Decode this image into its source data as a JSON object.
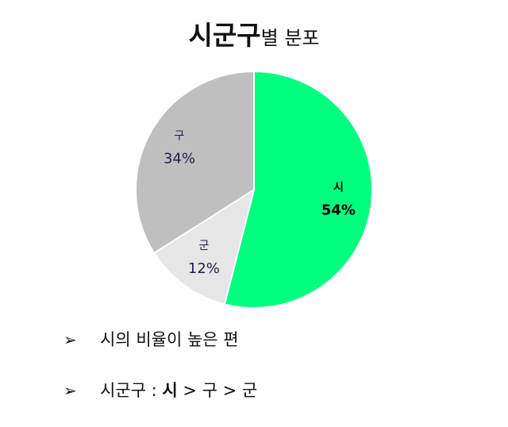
{
  "title": {
    "main": "시군구",
    "sub": "별 분포"
  },
  "chart_data": {
    "type": "pie",
    "slices": [
      {
        "label": "시",
        "value": 54,
        "value_label": "54%",
        "color": "#00FF80",
        "label_color": "#000000",
        "bold": true
      },
      {
        "label": "군",
        "value": 12,
        "value_label": "12%",
        "color": "#E6E6E6",
        "label_color": "#1F1F4D",
        "bold": false
      },
      {
        "label": "구",
        "value": 34,
        "value_label": "34%",
        "color": "#BFBFBF",
        "label_color": "#1F1F4D",
        "bold": false
      }
    ]
  },
  "bullets": [
    {
      "marker": "➢",
      "text": "시의 비율이 높은 편"
    },
    {
      "marker": "➢",
      "prefix": "시군구 : ",
      "strong": "시",
      "suffix": " > 구 > 군"
    }
  ]
}
